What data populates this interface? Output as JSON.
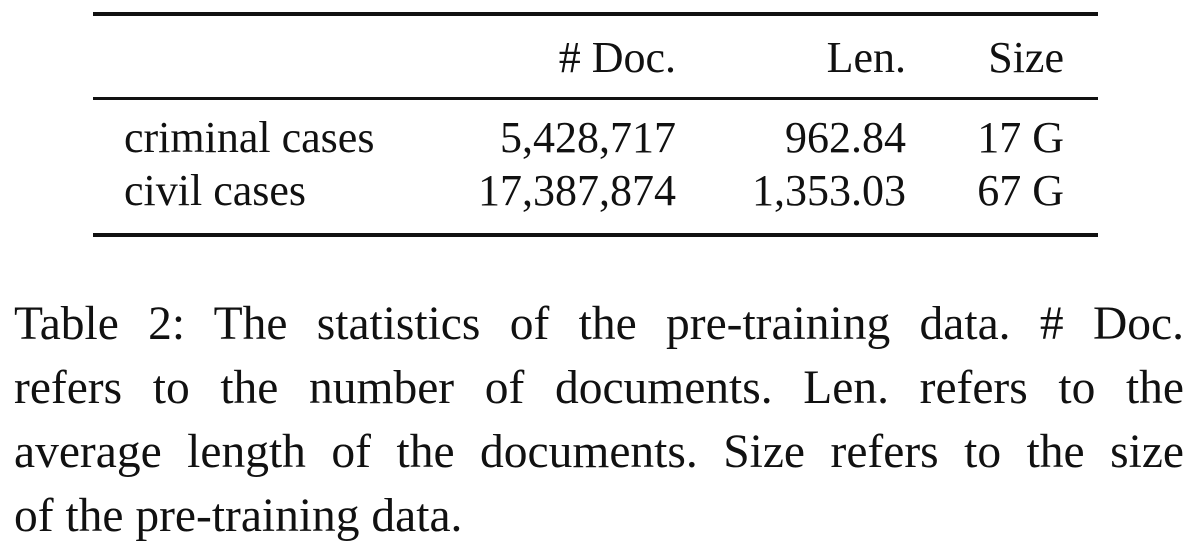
{
  "table": {
    "headers": [
      "",
      "# Doc.",
      "Len.",
      "Size"
    ],
    "rows": [
      {
        "name": "criminal cases",
        "doc": "5,428,717",
        "len": "962.84",
        "size": "17 G"
      },
      {
        "name": "civil cases",
        "doc": "17,387,874",
        "len": "1,353.03",
        "size": "67 G"
      }
    ]
  },
  "caption": {
    "lines": [
      "Table 2: The statistics of the pre-training data. # Doc.",
      "refers to the number of documents. Len. refers to the",
      "average length of the documents. Size refers to the size",
      "of the pre-training data."
    ]
  }
}
